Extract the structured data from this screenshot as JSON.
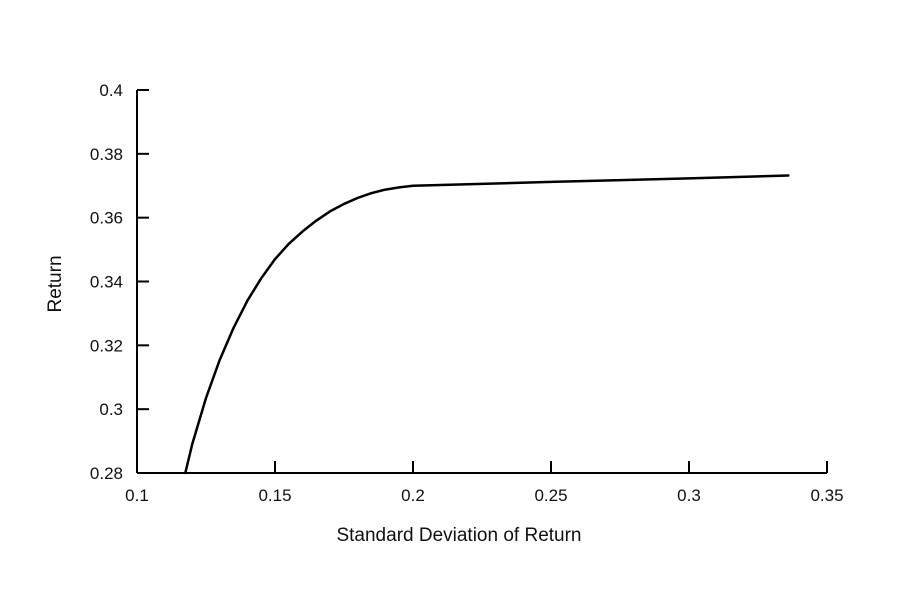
{
  "chart_data": {
    "type": "line",
    "title": "",
    "xlabel": "Standard  Deviation of Return",
    "ylabel": "Return",
    "xlim": [
      0.1,
      0.35
    ],
    "ylim": [
      0.28,
      0.4
    ],
    "xticks": [
      0.1,
      0.15,
      0.2,
      0.25,
      0.3,
      0.35
    ],
    "yticks": [
      0.28,
      0.3,
      0.32,
      0.34,
      0.36,
      0.38,
      0.4
    ],
    "xtick_labels": [
      "0.1",
      "0.15",
      "0.2",
      "0.25",
      "0.3",
      "0.35"
    ],
    "ytick_labels": [
      "0.28",
      "0.3",
      "0.32",
      "0.34",
      "0.36",
      "0.38",
      "0.4"
    ],
    "grid": false,
    "legend": "none",
    "line_color": "#000000",
    "series": [
      {
        "x": [
          0.1175,
          0.12,
          0.125,
          0.13,
          0.135,
          0.14,
          0.145,
          0.15,
          0.155,
          0.16,
          0.165,
          0.17,
          0.175,
          0.18,
          0.185,
          0.19,
          0.195,
          0.2,
          0.25,
          0.3,
          0.336
        ],
        "y": [
          0.28,
          0.289,
          0.3035,
          0.3155,
          0.3255,
          0.334,
          0.341,
          0.347,
          0.3518,
          0.3557,
          0.3591,
          0.362,
          0.3643,
          0.3662,
          0.3677,
          0.3688,
          0.3695,
          0.37,
          0.3712,
          0.3723,
          0.3732
        ]
      }
    ]
  }
}
